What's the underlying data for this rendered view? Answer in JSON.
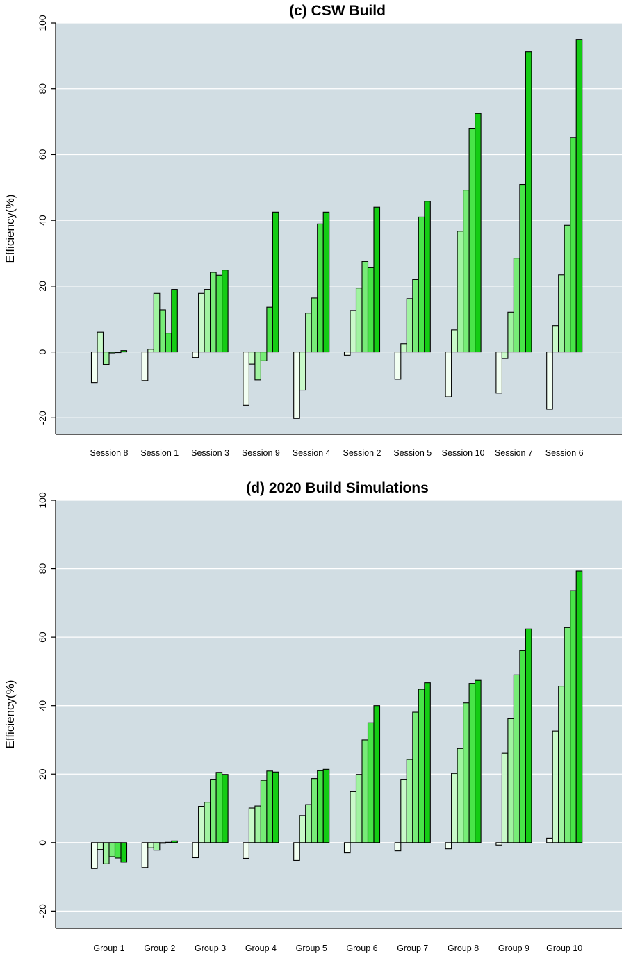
{
  "chart_data": [
    {
      "type": "bar",
      "title": "(c) CSW Build",
      "xlabel": "",
      "ylabel": "Efficiency(%)",
      "ylim": [
        -25,
        100
      ],
      "yticks": [
        -20,
        0,
        20,
        40,
        60,
        80,
        100
      ],
      "grid": true,
      "legend": "none",
      "colors": [
        "#f2fff2",
        "#c9f9c9",
        "#a0f3a0",
        "#77ec77",
        "#48e448",
        "#14cc14"
      ],
      "categories": [
        "Session 8",
        "Session 1",
        "Session 3",
        "Session 9",
        "Session 4",
        "Session 2",
        "Session 5",
        "Session 10",
        "Session 7",
        "Session 6"
      ],
      "values": [
        [
          -9.3,
          6.0,
          -3.8,
          -0.3,
          -0.2,
          0.4
        ],
        [
          -8.7,
          0.8,
          17.8,
          12.8,
          5.7,
          19.0
        ],
        [
          -1.7,
          17.8,
          19.0,
          24.2,
          23.3,
          24.9
        ],
        [
          -16.2,
          -3.7,
          -8.5,
          -2.7,
          13.6,
          42.5
        ],
        [
          -20.2,
          -11.6,
          11.8,
          16.4,
          38.9,
          42.5
        ],
        [
          -1.0,
          12.6,
          19.4,
          27.5,
          25.6,
          44.0
        ],
        [
          -8.3,
          2.5,
          16.2,
          22.0,
          41.0,
          45.8
        ],
        [
          -13.6,
          6.7,
          36.7,
          49.2,
          68.0,
          72.5
        ],
        [
          -12.5,
          -2.0,
          12.1,
          28.5,
          50.9,
          91.2
        ],
        [
          -17.4,
          8.0,
          23.4,
          38.5,
          65.2,
          95.0
        ]
      ]
    },
    {
      "type": "bar",
      "title": "(d) 2020 Build Simulations",
      "xlabel": "",
      "ylabel": "Efficiency(%)",
      "ylim": [
        -25,
        100
      ],
      "yticks": [
        -20,
        0,
        20,
        40,
        60,
        80,
        100
      ],
      "grid": true,
      "legend": "none",
      "colors": [
        "#f2fff2",
        "#c9f9c9",
        "#a0f3a0",
        "#77ec77",
        "#48e448",
        "#14cc14"
      ],
      "categories": [
        "Group 1",
        "Group 2",
        "Group 3",
        "Group 4",
        "Group 5",
        "Group 6",
        "Group 7",
        "Group 8",
        "Group 9",
        "Group 10"
      ],
      "values": [
        [
          -7.6,
          -2.0,
          -6.2,
          -4.1,
          -4.5,
          -5.7
        ],
        [
          -7.3,
          -1.5,
          -2.2,
          -0.2,
          0.1,
          0.5
        ],
        [
          -4.4,
          10.6,
          11.8,
          18.5,
          20.5,
          19.9
        ],
        [
          -4.6,
          10.1,
          10.7,
          18.2,
          20.9,
          20.6
        ],
        [
          -5.2,
          7.9,
          11.1,
          18.7,
          21.0,
          21.4
        ],
        [
          -3.0,
          14.9,
          19.9,
          30.0,
          35.0,
          40.0
        ],
        [
          -2.4,
          18.5,
          24.3,
          38.1,
          44.8,
          46.7
        ],
        [
          -1.8,
          20.2,
          27.5,
          40.8,
          46.5,
          47.4
        ],
        [
          -0.7,
          26.1,
          36.2,
          49.0,
          56.1,
          62.4
        ],
        [
          1.3,
          32.6,
          45.7,
          62.8,
          73.6,
          79.3
        ]
      ]
    }
  ]
}
